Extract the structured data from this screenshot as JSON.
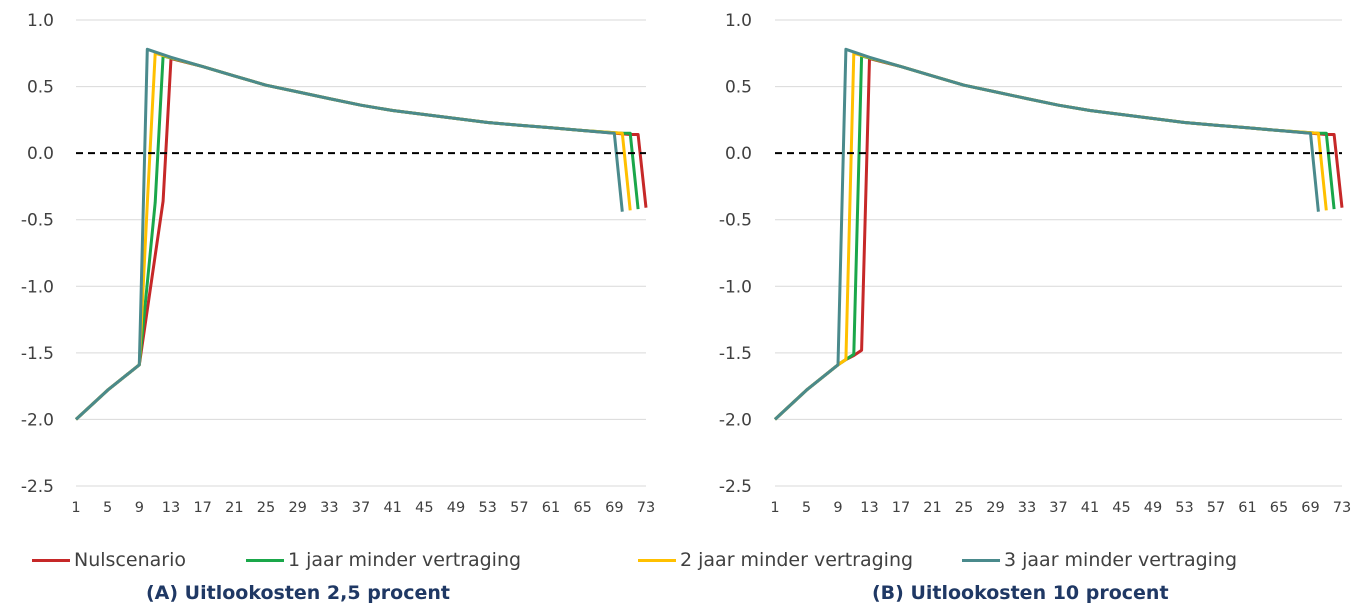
{
  "chart_data": [
    {
      "type": "line",
      "title": "",
      "caption": "(A) Uitlookosten 2,5 procent",
      "xlabel": "",
      "ylabel": "",
      "ylim": [
        -2.5,
        1.0
      ],
      "yticks": [
        "1.0",
        "0.5",
        "0.0",
        "-0.5",
        "-1.0",
        "-1.5",
        "-2.0",
        "-2.5"
      ],
      "xlim": [
        1,
        73
      ],
      "xticks": [
        1,
        5,
        9,
        13,
        17,
        21,
        25,
        29,
        33,
        37,
        41,
        45,
        49,
        53,
        57,
        61,
        65,
        69,
        73
      ],
      "reference_line": {
        "y": 0.0,
        "style": "dashed",
        "color": "#000000"
      },
      "series": [
        {
          "name": "Nulscenario",
          "color": "#c62828",
          "points": [
            [
              1,
              -2.0
            ],
            [
              5,
              -1.78
            ],
            [
              9,
              -1.59
            ],
            [
              12,
              -0.36
            ],
            [
              13,
              0.71
            ],
            [
              17,
              0.65
            ],
            [
              21,
              0.58
            ],
            [
              25,
              0.51
            ],
            [
              29,
              0.46
            ],
            [
              33,
              0.41
            ],
            [
              37,
              0.36
            ],
            [
              41,
              0.32
            ],
            [
              45,
              0.29
            ],
            [
              49,
              0.26
            ],
            [
              53,
              0.23
            ],
            [
              57,
              0.21
            ],
            [
              61,
              0.19
            ],
            [
              65,
              0.17
            ],
            [
              71,
              0.14
            ],
            [
              72,
              0.14
            ],
            [
              73,
              -0.41
            ]
          ]
        },
        {
          "name": "1 jaar minder vertraging",
          "color": "#1aa74a",
          "points": [
            [
              1,
              -2.0
            ],
            [
              5,
              -1.78
            ],
            [
              9,
              -1.59
            ],
            [
              11,
              -0.37
            ],
            [
              12,
              0.73
            ],
            [
              17,
              0.65
            ],
            [
              21,
              0.58
            ],
            [
              25,
              0.51
            ],
            [
              29,
              0.46
            ],
            [
              33,
              0.41
            ],
            [
              37,
              0.36
            ],
            [
              41,
              0.32
            ],
            [
              45,
              0.29
            ],
            [
              49,
              0.26
            ],
            [
              53,
              0.23
            ],
            [
              57,
              0.21
            ],
            [
              61,
              0.19
            ],
            [
              65,
              0.17
            ],
            [
              70,
              0.15
            ],
            [
              71,
              0.15
            ],
            [
              72,
              -0.42
            ]
          ]
        },
        {
          "name": "2 jaar minder vertraging",
          "color": "#ffc000",
          "points": [
            [
              1,
              -2.0
            ],
            [
              5,
              -1.78
            ],
            [
              9,
              -1.59
            ],
            [
              10,
              -0.38
            ],
            [
              11,
              0.75
            ],
            [
              17,
              0.65
            ],
            [
              21,
              0.58
            ],
            [
              25,
              0.51
            ],
            [
              29,
              0.46
            ],
            [
              33,
              0.41
            ],
            [
              37,
              0.36
            ],
            [
              41,
              0.32
            ],
            [
              45,
              0.29
            ],
            [
              49,
              0.26
            ],
            [
              53,
              0.23
            ],
            [
              57,
              0.21
            ],
            [
              61,
              0.19
            ],
            [
              65,
              0.17
            ],
            [
              70,
              0.15
            ],
            [
              71,
              -0.43
            ]
          ]
        },
        {
          "name": "3 jaar minder vertraging",
          "color": "#4a8a8c",
          "points": [
            [
              1,
              -2.0
            ],
            [
              5,
              -1.78
            ],
            [
              9,
              -1.59
            ],
            [
              10,
              0.78
            ],
            [
              13,
              0.72
            ],
            [
              17,
              0.65
            ],
            [
              21,
              0.58
            ],
            [
              25,
              0.51
            ],
            [
              29,
              0.46
            ],
            [
              33,
              0.41
            ],
            [
              37,
              0.36
            ],
            [
              41,
              0.32
            ],
            [
              45,
              0.29
            ],
            [
              49,
              0.26
            ],
            [
              53,
              0.23
            ],
            [
              57,
              0.21
            ],
            [
              61,
              0.19
            ],
            [
              65,
              0.17
            ],
            [
              69,
              0.15
            ],
            [
              70,
              -0.44
            ]
          ]
        }
      ]
    },
    {
      "type": "line",
      "title": "",
      "caption": "(B) Uitlookosten 10 procent",
      "xlabel": "",
      "ylabel": "",
      "ylim": [
        -2.5,
        1.0
      ],
      "yticks": [
        "1.0",
        "0.5",
        "0.0",
        "-0.5",
        "-1.0",
        "-1.5",
        "-2.0",
        "-2.5"
      ],
      "xlim": [
        1,
        73
      ],
      "xticks": [
        1,
        5,
        9,
        13,
        17,
        21,
        25,
        29,
        33,
        37,
        41,
        45,
        49,
        53,
        57,
        61,
        65,
        69,
        73
      ],
      "reference_line": {
        "y": 0.0,
        "style": "dashed",
        "color": "#000000"
      },
      "series": [
        {
          "name": "Nulscenario",
          "color": "#c62828",
          "points": [
            [
              1,
              -2.0
            ],
            [
              5,
              -1.78
            ],
            [
              9,
              -1.59
            ],
            [
              10,
              -1.55
            ],
            [
              11,
              -1.52
            ],
            [
              12,
              -1.48
            ],
            [
              13,
              0.71
            ],
            [
              17,
              0.65
            ],
            [
              21,
              0.58
            ],
            [
              25,
              0.51
            ],
            [
              29,
              0.46
            ],
            [
              33,
              0.41
            ],
            [
              37,
              0.36
            ],
            [
              41,
              0.32
            ],
            [
              45,
              0.29
            ],
            [
              49,
              0.26
            ],
            [
              53,
              0.23
            ],
            [
              57,
              0.21
            ],
            [
              61,
              0.19
            ],
            [
              65,
              0.17
            ],
            [
              71,
              0.14
            ],
            [
              72,
              0.14
            ],
            [
              73,
              -0.41
            ]
          ]
        },
        {
          "name": "1 jaar minder vertraging",
          "color": "#1aa74a",
          "points": [
            [
              1,
              -2.0
            ],
            [
              5,
              -1.78
            ],
            [
              9,
              -1.59
            ],
            [
              10,
              -1.55
            ],
            [
              11,
              -1.51
            ],
            [
              12,
              0.73
            ],
            [
              17,
              0.65
            ],
            [
              21,
              0.58
            ],
            [
              25,
              0.51
            ],
            [
              29,
              0.46
            ],
            [
              33,
              0.41
            ],
            [
              37,
              0.36
            ],
            [
              41,
              0.32
            ],
            [
              45,
              0.29
            ],
            [
              49,
              0.26
            ],
            [
              53,
              0.23
            ],
            [
              57,
              0.21
            ],
            [
              61,
              0.19
            ],
            [
              65,
              0.17
            ],
            [
              70,
              0.15
            ],
            [
              71,
              0.15
            ],
            [
              72,
              -0.42
            ]
          ]
        },
        {
          "name": "2 jaar minder vertraging",
          "color": "#ffc000",
          "points": [
            [
              1,
              -2.0
            ],
            [
              5,
              -1.78
            ],
            [
              9,
              -1.59
            ],
            [
              10,
              -1.55
            ],
            [
              11,
              0.75
            ],
            [
              17,
              0.65
            ],
            [
              21,
              0.58
            ],
            [
              25,
              0.51
            ],
            [
              29,
              0.46
            ],
            [
              33,
              0.41
            ],
            [
              37,
              0.36
            ],
            [
              41,
              0.32
            ],
            [
              45,
              0.29
            ],
            [
              49,
              0.26
            ],
            [
              53,
              0.23
            ],
            [
              57,
              0.21
            ],
            [
              61,
              0.19
            ],
            [
              65,
              0.17
            ],
            [
              70,
              0.15
            ],
            [
              71,
              -0.43
            ]
          ]
        },
        {
          "name": "3 jaar minder vertraging",
          "color": "#4a8a8c",
          "points": [
            [
              1,
              -2.0
            ],
            [
              5,
              -1.78
            ],
            [
              9,
              -1.59
            ],
            [
              10,
              0.78
            ],
            [
              13,
              0.72
            ],
            [
              17,
              0.65
            ],
            [
              21,
              0.58
            ],
            [
              25,
              0.51
            ],
            [
              29,
              0.46
            ],
            [
              33,
              0.41
            ],
            [
              37,
              0.36
            ],
            [
              41,
              0.32
            ],
            [
              45,
              0.29
            ],
            [
              49,
              0.26
            ],
            [
              53,
              0.23
            ],
            [
              57,
              0.21
            ],
            [
              61,
              0.19
            ],
            [
              65,
              0.17
            ],
            [
              69,
              0.15
            ],
            [
              70,
              -0.44
            ]
          ]
        }
      ]
    }
  ],
  "legend": [
    {
      "label": "Nulscenario",
      "color": "#c62828"
    },
    {
      "label": "1 jaar minder vertraging",
      "color": "#1aa74a"
    },
    {
      "label": "2 jaar minder vertraging",
      "color": "#ffc000"
    },
    {
      "label": "3 jaar minder vertraging",
      "color": "#4a8a8c"
    }
  ],
  "captions": {
    "a": "(A) Uitlookosten 2,5 procent",
    "b": "(B) Uitlookosten 10 procent"
  }
}
